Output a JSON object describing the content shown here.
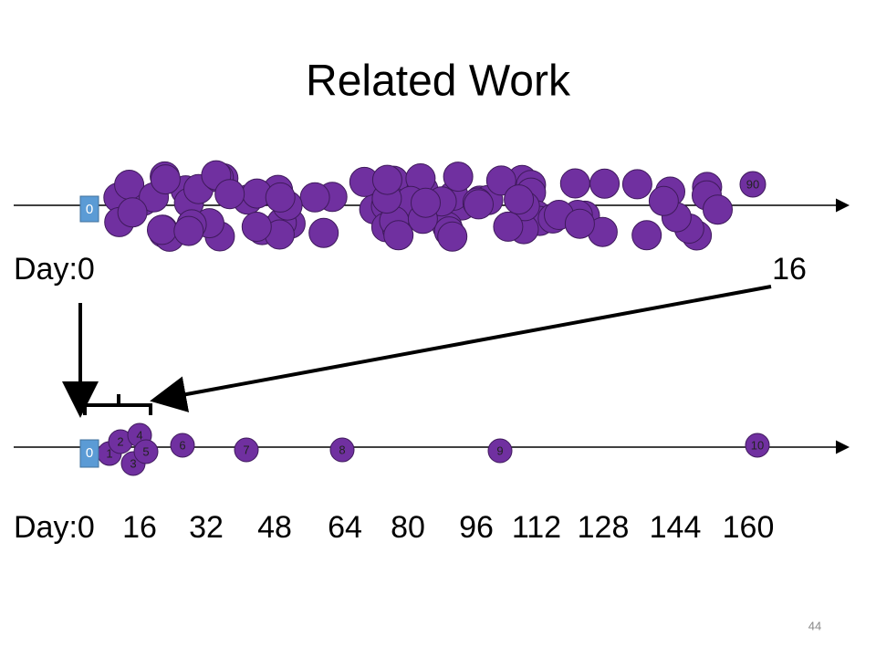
{
  "title": "Related Work",
  "top_timeline": {
    "start_marker": "0",
    "last_node": "90",
    "day_labels": [
      "Day:0",
      "16"
    ]
  },
  "bottom_timeline": {
    "start_marker": "0",
    "nodes": [
      "1",
      "2",
      "3",
      "4",
      "5",
      "6",
      "7",
      "8",
      "9",
      "10"
    ],
    "day_labels": [
      "Day:0",
      "16",
      "32",
      "48",
      "64",
      "80",
      "96",
      "112",
      "128",
      "144",
      "160"
    ]
  },
  "page_number": "44"
}
